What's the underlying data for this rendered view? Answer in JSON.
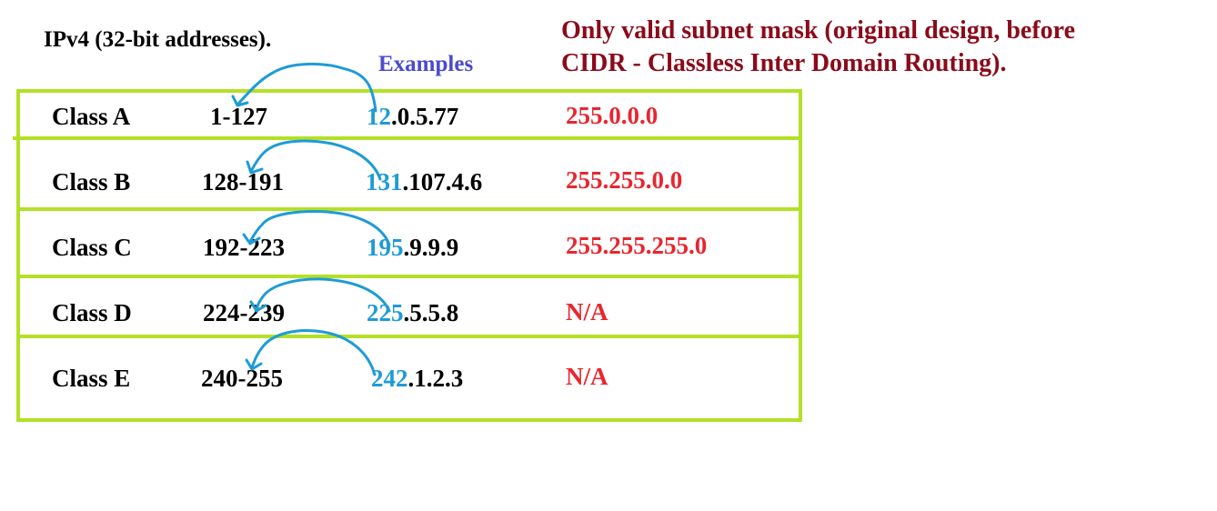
{
  "title": "IPv4 (32-bit addresses).",
  "examples_heading": "Examples",
  "note": {
    "line1": "Only valid subnet mask (original design, before",
    "line2": "CIDR - Classless Inter Domain Routing)."
  },
  "colors": {
    "table_border": "#b3e026",
    "example_highlight": "#1e9bd7",
    "examples_heading": "#4b4bcf",
    "note_text": "#8b0a1a",
    "mask_text": "#e8262f",
    "arrow": "#1e9bd7"
  },
  "rows": [
    {
      "cls": "Class  A",
      "range": "1-127",
      "ex_first": "12",
      "ex_rest": ".0.5.77",
      "mask": "255.0.0.0"
    },
    {
      "cls": "Class  B",
      "range": "128-191",
      "ex_first": "131",
      "ex_rest": ".107.4.6",
      "mask": "255.255.0.0"
    },
    {
      "cls": "Class  C",
      "range": "192-223",
      "ex_first": "195",
      "ex_rest": ".9.9.9",
      "mask": "255.255.255.0"
    },
    {
      "cls": "Class  D",
      "range": "224-239",
      "ex_first": "225",
      "ex_rest": ".5.5.8",
      "mask": "N/A"
    },
    {
      "cls": "Class  E",
      "range": "240-255",
      "ex_first": "242",
      "ex_rest": ".1.2.3",
      "mask": "N/A"
    }
  ]
}
